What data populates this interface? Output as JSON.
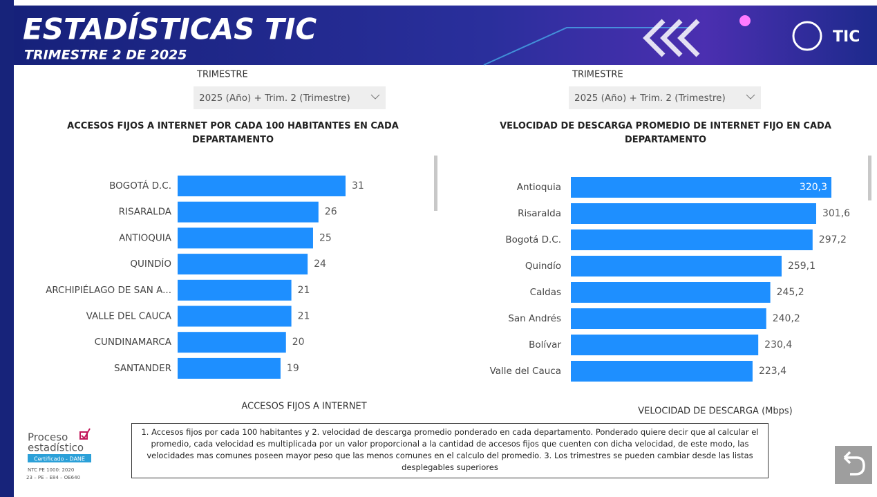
{
  "header": {
    "title": "ESTADÍSTICAS TIC",
    "subtitle": "TRIMESTRE 2 DE 2025",
    "brand": "TIC"
  },
  "filters": [
    {
      "label": "TRIMESTRE",
      "value": "2025 (Año) + Trim. 2 (Trimestre)"
    },
    {
      "label": "TRIMESTRE",
      "value": "2025 (Año) + Trim. 2 (Trimestre)"
    }
  ],
  "chart_data": [
    {
      "type": "bar",
      "title": "ACCESOS FIJOS A INTERNET POR CADA 100 HABITANTES EN CADA DEPARTAMENTO",
      "categories": [
        "BOGOTÁ D.C.",
        "RISARALDA",
        "ANTIOQUIA",
        "QUINDÍO",
        "ARCHIPIÉLAGO DE SAN A...",
        "VALLE DEL CAUCA",
        "CUNDINAMARCA",
        "SANTANDER"
      ],
      "values": [
        31,
        26,
        25,
        24,
        21,
        21,
        20,
        19
      ],
      "color": "#1e8fff",
      "xlabel": "ACCESOS FIJOS A INTERNET"
    },
    {
      "type": "bar",
      "title": "VELOCIDAD DE DESCARGA PROMEDIO DE INTERNET FIJO EN CADA DEPARTAMENTO",
      "categories": [
        "Antioquia",
        "Risaralda",
        "Bogotá D.C.",
        "Quindío",
        "Caldas",
        "San Andrés",
        "Bolívar",
        "Valle del Cauca"
      ],
      "values": [
        320.3,
        301.6,
        297.2,
        259.1,
        245.2,
        240.2,
        230.4,
        223.4
      ],
      "value_labels": [
        "320,3",
        "301,6",
        "297,2",
        "259,1",
        "245,2",
        "240,2",
        "230,4",
        "223,4"
      ],
      "color": "#1e8fff",
      "xlabel": "VELOCIDAD DE DESCARGA (Mbps)"
    }
  ],
  "footnote": "1. Accesos fijos por cada 100 habitantes y 2. velocidad de descarga promedio ponderado en cada departamento. Ponderado quiere decir que al calcular el promedio, cada velocidad es multiplicada por un valor proporcional a la cantidad de accesos fijos que cuenten con dicha velocidad, de este modo, las velocidades mas comunes poseen mayor peso que las menos comunes en el calculo del promedio. 3. Los trimestres se pueden cambiar desde las listas desplegables superiores",
  "logo": {
    "line1": "Proceso",
    "line2": "estadístico",
    "badge": "Certificado - DANE",
    "code1": "NTC PE 1000: 2020",
    "code2": "23 – PE – E84 – OE640"
  }
}
